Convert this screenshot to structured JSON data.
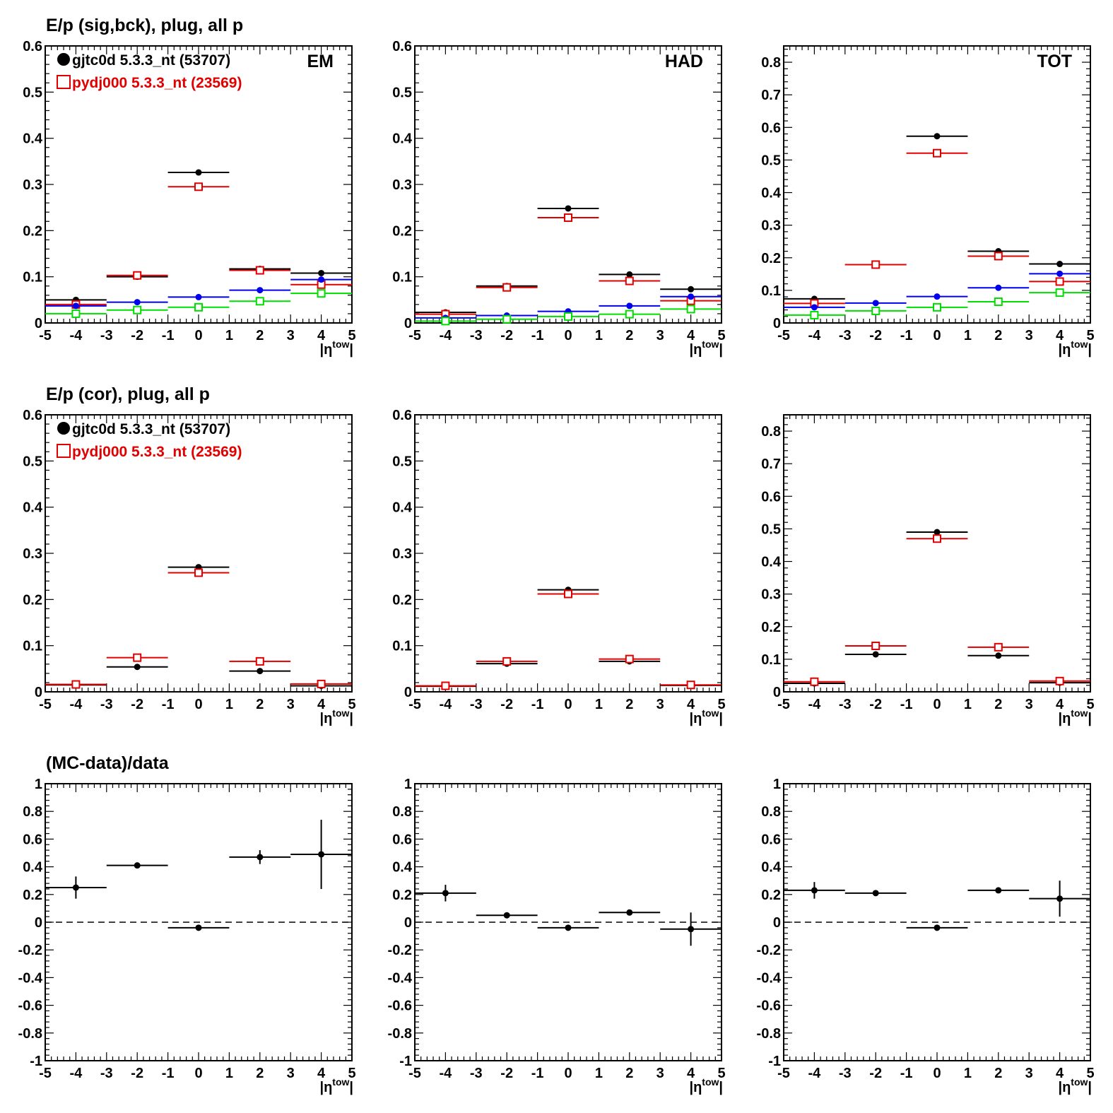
{
  "figure": {
    "rows": [
      {
        "title": "E/p (sig,bck), plug, all p",
        "legend": {
          "entries": [
            {
              "label": "gjtc0d 5.3.3_nt (53707)",
              "color": "#000000",
              "marker": "filled-circle"
            },
            {
              "label": "pydj000 5.3.3_nt (23569)",
              "color": "#e00000",
              "marker": "open-square"
            }
          ]
        }
      },
      {
        "title": "E/p (cor), plug, all p",
        "legend": {
          "entries": [
            {
              "label": "gjtc0d 5.3.3_nt (53707)",
              "color": "#000000",
              "marker": "filled-circle"
            },
            {
              "label": "pydj000 5.3.3_nt (23569)",
              "color": "#e00000",
              "marker": "open-square"
            }
          ]
        }
      },
      {
        "title": "(MC-data)/data",
        "legend": null
      }
    ]
  },
  "chart_data": [
    {
      "type": "scatter",
      "panel_tag": "EM",
      "xlabel": "|η^tow|",
      "xlim": [
        -5,
        5
      ],
      "ylim": [
        0,
        0.6
      ],
      "xticks": [
        "-5",
        "-4",
        "-3",
        "-2",
        "-1",
        "0",
        "1",
        "2",
        "3",
        "4",
        "5"
      ],
      "yticks": [
        "0",
        "0.1",
        "0.2",
        "0.3",
        "0.4",
        "0.5",
        "0.6"
      ],
      "bins": [
        [
          -5,
          -3
        ],
        [
          -3,
          -1
        ],
        [
          -1,
          1
        ],
        [
          1,
          3
        ],
        [
          3,
          5
        ]
      ],
      "x": [
        -4,
        -2,
        0,
        2,
        4
      ],
      "series": [
        {
          "color": "#000000",
          "marker": "filled-circle",
          "values": [
            0.05,
            0.1,
            0.326,
            0.117,
            0.108
          ]
        },
        {
          "color": "#e00000",
          "marker": "open-square",
          "values": [
            0.04,
            0.103,
            0.295,
            0.114,
            0.083
          ]
        },
        {
          "color": "#0000ee",
          "marker": "filled-circle",
          "values": [
            0.037,
            0.045,
            0.056,
            0.071,
            0.094
          ]
        },
        {
          "color": "#00dd00",
          "marker": "open-square",
          "values": [
            0.02,
            0.028,
            0.034,
            0.047,
            0.064
          ]
        }
      ]
    },
    {
      "type": "scatter",
      "panel_tag": "HAD",
      "xlabel": "|η^tow|",
      "xlim": [
        -5,
        5
      ],
      "ylim": [
        0,
        0.6
      ],
      "xticks": [
        "-5",
        "-4",
        "-3",
        "-2",
        "-1",
        "0",
        "1",
        "2",
        "3",
        "4",
        "5"
      ],
      "yticks": [
        "0",
        "0.1",
        "0.2",
        "0.3",
        "0.4",
        "0.5",
        "0.6"
      ],
      "bins": [
        [
          -5,
          -3
        ],
        [
          -3,
          -1
        ],
        [
          -1,
          1
        ],
        [
          1,
          3
        ],
        [
          3,
          5
        ]
      ],
      "x": [
        -4,
        -2,
        0,
        2,
        4
      ],
      "series": [
        {
          "color": "#000000",
          "marker": "filled-circle",
          "values": [
            0.023,
            0.08,
            0.248,
            0.105,
            0.073
          ]
        },
        {
          "color": "#e00000",
          "marker": "open-square",
          "values": [
            0.019,
            0.077,
            0.228,
            0.091,
            0.048
          ]
        },
        {
          "color": "#0000ee",
          "marker": "filled-circle",
          "values": [
            0.011,
            0.016,
            0.025,
            0.037,
            0.057
          ]
        },
        {
          "color": "#00dd00",
          "marker": "open-square",
          "values": [
            0.004,
            0.008,
            0.014,
            0.019,
            0.03
          ]
        }
      ]
    },
    {
      "type": "scatter",
      "panel_tag": "TOT",
      "xlabel": "|η^tow|",
      "xlim": [
        -5,
        5
      ],
      "ylim": [
        0,
        0.85
      ],
      "xticks": [
        "-5",
        "-4",
        "-3",
        "-2",
        "-1",
        "0",
        "1",
        "2",
        "3",
        "4",
        "5"
      ],
      "yticks": [
        "0",
        "0.1",
        "0.2",
        "0.3",
        "0.4",
        "0.5",
        "0.6",
        "0.7",
        "0.8"
      ],
      "bins": [
        [
          -5,
          -3
        ],
        [
          -3,
          -1
        ],
        [
          -1,
          1
        ],
        [
          1,
          3
        ],
        [
          3,
          5
        ]
      ],
      "x": [
        -4,
        -2,
        0,
        2,
        4
      ],
      "series": [
        {
          "color": "#000000",
          "marker": "filled-circle",
          "values": [
            0.074,
            0.179,
            0.573,
            0.22,
            0.181
          ]
        },
        {
          "color": "#e00000",
          "marker": "open-square",
          "values": [
            0.06,
            0.179,
            0.521,
            0.205,
            0.127
          ]
        },
        {
          "color": "#0000ee",
          "marker": "filled-circle",
          "values": [
            0.048,
            0.061,
            0.081,
            0.108,
            0.151
          ]
        },
        {
          "color": "#00dd00",
          "marker": "open-square",
          "values": [
            0.024,
            0.037,
            0.048,
            0.065,
            0.093
          ]
        }
      ]
    },
    {
      "type": "scatter",
      "panel_tag": "",
      "xlabel": "|η^tow|",
      "xlim": [
        -5,
        5
      ],
      "ylim": [
        0,
        0.6
      ],
      "xticks": [
        "-5",
        "-4",
        "-3",
        "-2",
        "-1",
        "0",
        "1",
        "2",
        "3",
        "4",
        "5"
      ],
      "yticks": [
        "0",
        "0.1",
        "0.2",
        "0.3",
        "0.4",
        "0.5",
        "0.6"
      ],
      "bins": [
        [
          -5,
          -3
        ],
        [
          -3,
          -1
        ],
        [
          -1,
          1
        ],
        [
          1,
          3
        ],
        [
          3,
          5
        ]
      ],
      "x": [
        -4,
        -2,
        0,
        2,
        4
      ],
      "series": [
        {
          "color": "#000000",
          "marker": "filled-circle",
          "values": [
            0.015,
            0.054,
            0.27,
            0.045,
            0.013
          ]
        },
        {
          "color": "#e00000",
          "marker": "open-square",
          "values": [
            0.016,
            0.074,
            0.258,
            0.066,
            0.017
          ]
        }
      ]
    },
    {
      "type": "scatter",
      "panel_tag": "",
      "xlabel": "|η^tow|",
      "xlim": [
        -5,
        5
      ],
      "ylim": [
        0,
        0.6
      ],
      "xticks": [
        "-5",
        "-4",
        "-3",
        "-2",
        "-1",
        "0",
        "1",
        "2",
        "3",
        "4",
        "5"
      ],
      "yticks": [
        "0",
        "0.1",
        "0.2",
        "0.3",
        "0.4",
        "0.5",
        "0.6"
      ],
      "bins": [
        [
          -5,
          -3
        ],
        [
          -3,
          -1
        ],
        [
          -1,
          1
        ],
        [
          1,
          3
        ],
        [
          3,
          5
        ]
      ],
      "x": [
        -4,
        -2,
        0,
        2,
        4
      ],
      "series": [
        {
          "color": "#000000",
          "marker": "filled-circle",
          "values": [
            0.012,
            0.061,
            0.221,
            0.066,
            0.014
          ]
        },
        {
          "color": "#e00000",
          "marker": "open-square",
          "values": [
            0.013,
            0.066,
            0.212,
            0.071,
            0.015
          ]
        }
      ]
    },
    {
      "type": "scatter",
      "panel_tag": "",
      "xlabel": "|η^tow|",
      "xlim": [
        -5,
        5
      ],
      "ylim": [
        0,
        0.85
      ],
      "xticks": [
        "-5",
        "-4",
        "-3",
        "-2",
        "-1",
        "0",
        "1",
        "2",
        "3",
        "4",
        "5"
      ],
      "yticks": [
        "0",
        "0.1",
        "0.2",
        "0.3",
        "0.4",
        "0.5",
        "0.6",
        "0.7",
        "0.8"
      ],
      "bins": [
        [
          -5,
          -3
        ],
        [
          -3,
          -1
        ],
        [
          -1,
          1
        ],
        [
          1,
          3
        ],
        [
          3,
          5
        ]
      ],
      "x": [
        -4,
        -2,
        0,
        2,
        4
      ],
      "series": [
        {
          "color": "#000000",
          "marker": "filled-circle",
          "values": [
            0.026,
            0.115,
            0.49,
            0.111,
            0.028
          ]
        },
        {
          "color": "#e00000",
          "marker": "open-square",
          "values": [
            0.031,
            0.141,
            0.47,
            0.137,
            0.033
          ]
        }
      ]
    },
    {
      "type": "scatter",
      "panel_tag": "",
      "xlabel": "|η^tow|",
      "xlim": [
        -5,
        5
      ],
      "ylim": [
        -1,
        1
      ],
      "xticks": [
        "-5",
        "-4",
        "-3",
        "-2",
        "-1",
        "0",
        "1",
        "2",
        "3",
        "4",
        "5"
      ],
      "yticks": [
        "-1",
        "-0.8",
        "-0.6",
        "-0.4",
        "-0.2",
        "0",
        "0.2",
        "0.4",
        "0.6",
        "0.8",
        "1"
      ],
      "bins": [
        [
          -5,
          -3
        ],
        [
          -3,
          -1
        ],
        [
          -1,
          1
        ],
        [
          1,
          3
        ],
        [
          3,
          5
        ]
      ],
      "x": [
        -4,
        -2,
        0,
        2,
        4
      ],
      "reference_line": 0,
      "series": [
        {
          "color": "#000000",
          "marker": "filled-circle",
          "values": [
            0.25,
            0.41,
            -0.04,
            0.47,
            0.49
          ],
          "errors": [
            0.08,
            0.02,
            0.02,
            0.05,
            0.25
          ]
        }
      ]
    },
    {
      "type": "scatter",
      "panel_tag": "",
      "xlabel": "|η^tow|",
      "xlim": [
        -5,
        5
      ],
      "ylim": [
        -1,
        1
      ],
      "xticks": [
        "-5",
        "-4",
        "-3",
        "-2",
        "-1",
        "0",
        "1",
        "2",
        "3",
        "4",
        "5"
      ],
      "yticks": [
        "-1",
        "-0.8",
        "-0.6",
        "-0.4",
        "-0.2",
        "0",
        "0.2",
        "0.4",
        "0.6",
        "0.8",
        "1"
      ],
      "bins": [
        [
          -5,
          -3
        ],
        [
          -3,
          -1
        ],
        [
          -1,
          1
        ],
        [
          1,
          3
        ],
        [
          3,
          5
        ]
      ],
      "x": [
        -4,
        -2,
        0,
        2,
        4
      ],
      "reference_line": 0,
      "series": [
        {
          "color": "#000000",
          "marker": "filled-circle",
          "values": [
            0.21,
            0.05,
            -0.04,
            0.07,
            -0.05
          ],
          "errors": [
            0.06,
            0.015,
            0.015,
            0.02,
            0.12
          ]
        }
      ]
    },
    {
      "type": "scatter",
      "panel_tag": "",
      "xlabel": "|η^tow|",
      "xlim": [
        -5,
        5
      ],
      "ylim": [
        -1,
        1
      ],
      "xticks": [
        "-5",
        "-4",
        "-3",
        "-2",
        "-1",
        "0",
        "1",
        "2",
        "3",
        "4",
        "5"
      ],
      "yticks": [
        "-1",
        "-0.8",
        "-0.6",
        "-0.4",
        "-0.2",
        "0",
        "0.2",
        "0.4",
        "0.6",
        "0.8",
        "1"
      ],
      "bins": [
        [
          -5,
          -3
        ],
        [
          -3,
          -1
        ],
        [
          -1,
          1
        ],
        [
          1,
          3
        ],
        [
          3,
          5
        ]
      ],
      "x": [
        -4,
        -2,
        0,
        2,
        4
      ],
      "reference_line": 0,
      "series": [
        {
          "color": "#000000",
          "marker": "filled-circle",
          "values": [
            0.23,
            0.21,
            -0.04,
            0.23,
            0.17
          ],
          "errors": [
            0.06,
            0.015,
            0.015,
            0.02,
            0.13
          ]
        }
      ]
    }
  ]
}
